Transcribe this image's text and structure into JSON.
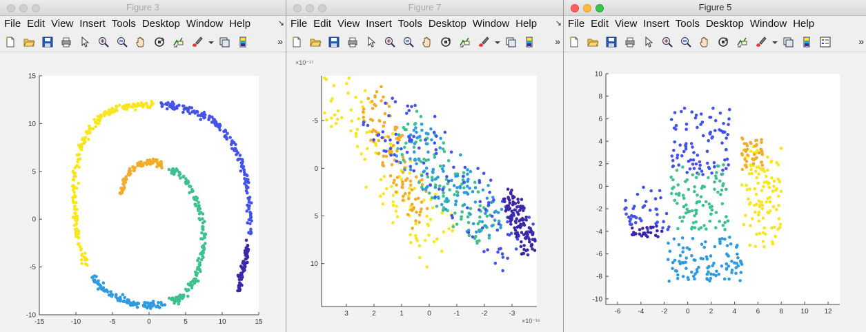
{
  "windows": [
    {
      "id": "w1",
      "title": "Figure 3",
      "active": false,
      "menu": [
        "File",
        "Edit",
        "View",
        "Insert",
        "Tools",
        "Desktop",
        "Window",
        "Help"
      ],
      "menu_overflow": "↘",
      "toolbar_overflow": "»",
      "toolbar": [
        "new-file-icon",
        "open-folder-icon",
        "save-icon",
        "print-icon",
        "pointer-icon",
        "zoom-in-icon",
        "zoom-out-icon",
        "pan-hand-icon",
        "rotate-3d-icon",
        "data-cursor-icon",
        "brush-icon",
        "dropdown-arrow-icon",
        "link-plot-icon",
        "colorbar-icon"
      ],
      "axes_multiplier_top": "",
      "axes_multiplier_bottom": ""
    },
    {
      "id": "w2",
      "title": "Figure 7",
      "active": false,
      "menu": [
        "File",
        "Edit",
        "View",
        "Insert",
        "Tools",
        "Desktop",
        "Window",
        "Help"
      ],
      "menu_overflow": "↘",
      "toolbar_overflow": "»",
      "toolbar": [
        "new-file-icon",
        "open-folder-icon",
        "save-icon",
        "print-icon",
        "pointer-icon",
        "zoom-in-icon",
        "zoom-out-icon",
        "pan-hand-icon",
        "rotate-3d-icon",
        "data-cursor-icon",
        "brush-icon",
        "dropdown-arrow-icon",
        "link-plot-icon",
        "colorbar-icon"
      ],
      "axes_multiplier_top": "×10⁻¹⁷",
      "axes_multiplier_bottom": "×10⁻¹⁶"
    },
    {
      "id": "w3",
      "title": "Figure 5",
      "active": true,
      "menu": [
        "File",
        "Edit",
        "View",
        "Insert",
        "Tools",
        "Desktop",
        "Window",
        "Help"
      ],
      "menu_overflow": "",
      "toolbar_overflow": "»",
      "toolbar": [
        "new-file-icon",
        "open-folder-icon",
        "save-icon",
        "print-icon",
        "pointer-icon",
        "zoom-in-icon",
        "zoom-out-icon",
        "pan-hand-icon",
        "rotate-3d-icon",
        "data-cursor-icon",
        "brush-icon",
        "dropdown-arrow-icon",
        "link-plot-icon",
        "colorbar-icon",
        "legend-icon"
      ],
      "axes_multiplier_top": "",
      "axes_multiplier_bottom": ""
    }
  ],
  "colors": {
    "parula": [
      "#3e26a8",
      "#4352ea",
      "#2e9ae0",
      "#3fc18e",
      "#f0ac2a",
      "#f7e61f"
    ]
  },
  "chart_data": [
    {
      "type": "scatter",
      "figure": "Figure 3",
      "xlim": [
        -15,
        15
      ],
      "ylim": [
        -10,
        15
      ],
      "xticks": [
        "-15",
        "-10",
        "-5",
        "0",
        "5",
        "10",
        "15"
      ],
      "xtick_values": [
        -15,
        -10,
        -5,
        0,
        5,
        10,
        15
      ],
      "yticks": [
        "-10",
        "-5",
        "0",
        "5",
        "10",
        "15"
      ],
      "ytick_values": [
        -10,
        -5,
        0,
        5,
        10,
        15
      ],
      "grid": false,
      "description_points": "swiss roll spiral",
      "segments": [
        {
          "color_index": 4,
          "x": [
            -3.9,
            -3.5,
            -3.0,
            -2.2,
            -1.2,
            0.0,
            1.0,
            2.0
          ],
          "y": [
            2.6,
            3.6,
            4.5,
            5.3,
            5.8,
            6.0,
            5.9,
            5.6
          ]
        },
        {
          "color_index": 3,
          "x": [
            2.8,
            4.2,
            5.5,
            6.5,
            7.2,
            7.5,
            7.4,
            7.0,
            6.2,
            5.0,
            4.0,
            3.0
          ],
          "y": [
            5.2,
            4.7,
            3.6,
            2.0,
            0.2,
            -1.6,
            -3.4,
            -5.0,
            -6.5,
            -7.7,
            -8.3,
            -8.6
          ]
        },
        {
          "color_index": 2,
          "x": [
            2.0,
            0.5,
            -1.0,
            -2.5,
            -4.0,
            -5.5,
            -6.8,
            -7.8
          ],
          "y": [
            -8.9,
            -9.0,
            -8.9,
            -8.7,
            -8.4,
            -7.8,
            -7.0,
            -6.0
          ]
        },
        {
          "color_index": 5,
          "x": [
            -8.5,
            -9.3,
            -9.9,
            -10.2,
            -10.2,
            -10.1,
            -9.7,
            -9.0,
            -8.0,
            -6.8,
            -5.5,
            -4.0,
            -2.5,
            -1.0,
            0.5
          ],
          "y": [
            -4.8,
            -3.0,
            -1.0,
            1.0,
            3.0,
            4.8,
            6.7,
            8.2,
            9.5,
            10.6,
            11.3,
            11.7,
            11.9,
            12.0,
            12.0
          ]
        },
        {
          "color_index": 1,
          "x": [
            1.5,
            3.0,
            4.5,
            6.0,
            7.5,
            9.0,
            10.3,
            11.5,
            12.5,
            13.2,
            13.6,
            13.8,
            13.7
          ],
          "y": [
            12.0,
            11.9,
            11.7,
            11.3,
            10.8,
            10.0,
            9.0,
            7.8,
            6.2,
            4.5,
            2.5,
            0.5,
            -1.5
          ]
        },
        {
          "color_index": 0,
          "x": [
            13.5,
            13.3,
            13.0,
            12.7,
            12.4,
            12.1
          ],
          "y": [
            -2.2,
            -3.6,
            -4.8,
            -5.8,
            -6.7,
            -7.5
          ]
        }
      ]
    },
    {
      "type": "scatter",
      "figure": "Figure 7",
      "xlim": [
        3.9,
        -3.9
      ],
      "ylim": [
        14.5,
        -9.7
      ],
      "xlim_units": "x 1e-16",
      "ylim_units": "x 1e-17",
      "xticks": [
        "3",
        "2",
        "1",
        "0",
        "-1",
        "-2",
        "-3"
      ],
      "xtick_values": [
        3,
        2,
        1,
        0,
        -1,
        -2,
        -3
      ],
      "yticks": [
        "-5",
        "0",
        "5",
        "10"
      ],
      "ytick_values": [
        -5,
        0,
        5,
        10
      ],
      "grid": false,
      "description_points": "diagonal band of scattered points",
      "bands": [
        {
          "color_index": 5,
          "x_start": [
            3.8,
            -9.5
          ],
          "x_end": [
            -0.5,
            8.5
          ],
          "spread": 2.2
        },
        {
          "color_index": 4,
          "x_start": [
            2.2,
            -7.5
          ],
          "x_end": [
            0.2,
            5.5
          ],
          "spread": 1.4
        },
        {
          "color_index": 3,
          "x_start": [
            1.0,
            -4.5
          ],
          "x_end": [
            -2.2,
            7.5
          ],
          "spread": 1.8
        },
        {
          "color_index": 2,
          "x_start": [
            0.8,
            -3.0
          ],
          "x_end": [
            -2.6,
            6.5
          ],
          "spread": 2.0
        },
        {
          "color_index": 1,
          "x_start": [
            1.8,
            -6.5
          ],
          "x_end": [
            -3.5,
            9.0
          ],
          "spread": 2.4
        },
        {
          "color_index": 0,
          "x_start": [
            -2.9,
            2.5
          ],
          "x_end": [
            -3.7,
            8.8
          ],
          "spread": 0.8
        }
      ]
    },
    {
      "type": "scatter",
      "figure": "Figure 5",
      "xlim": [
        -7,
        13
      ],
      "ylim": [
        -10.5,
        10
      ],
      "xticks": [
        "-6",
        "-4",
        "-2",
        "0",
        "2",
        "4",
        "6",
        "8",
        "10",
        "12"
      ],
      "xtick_values": [
        -6,
        -4,
        -2,
        0,
        2,
        4,
        6,
        8,
        10,
        12
      ],
      "yticks": [
        "-10",
        "-8",
        "-6",
        "-4",
        "-2",
        "0",
        "2",
        "4",
        "6",
        "8",
        "10"
      ],
      "ytick_values": [
        -10,
        -8,
        -6,
        -4,
        -2,
        0,
        2,
        4,
        6,
        8,
        10
      ],
      "grid": false,
      "description_points": "irregular 2D embedding",
      "clusters": [
        {
          "color_index": 1,
          "cx": 1.2,
          "cy": 4.0,
          "rx": 2.6,
          "ry": 3.0,
          "n": 90
        },
        {
          "color_index": 1,
          "cx": -3.5,
          "cy": -2.0,
          "rx": 2.0,
          "ry": 2.0,
          "n": 40
        },
        {
          "color_index": 0,
          "cx": -3.5,
          "cy": -4.0,
          "rx": 1.3,
          "ry": 0.5,
          "n": 25
        },
        {
          "color_index": 3,
          "cx": 1.0,
          "cy": -1.0,
          "rx": 2.5,
          "ry": 3.0,
          "n": 90
        },
        {
          "color_index": 2,
          "cx": 1.5,
          "cy": -6.5,
          "rx": 3.2,
          "ry": 2.0,
          "n": 100
        },
        {
          "color_index": 5,
          "cx": 6.3,
          "cy": -1.0,
          "rx": 1.7,
          "ry": 4.5,
          "n": 110
        },
        {
          "color_index": 4,
          "cx": 5.5,
          "cy": 3.0,
          "rx": 0.9,
          "ry": 1.6,
          "n": 40
        }
      ]
    }
  ]
}
